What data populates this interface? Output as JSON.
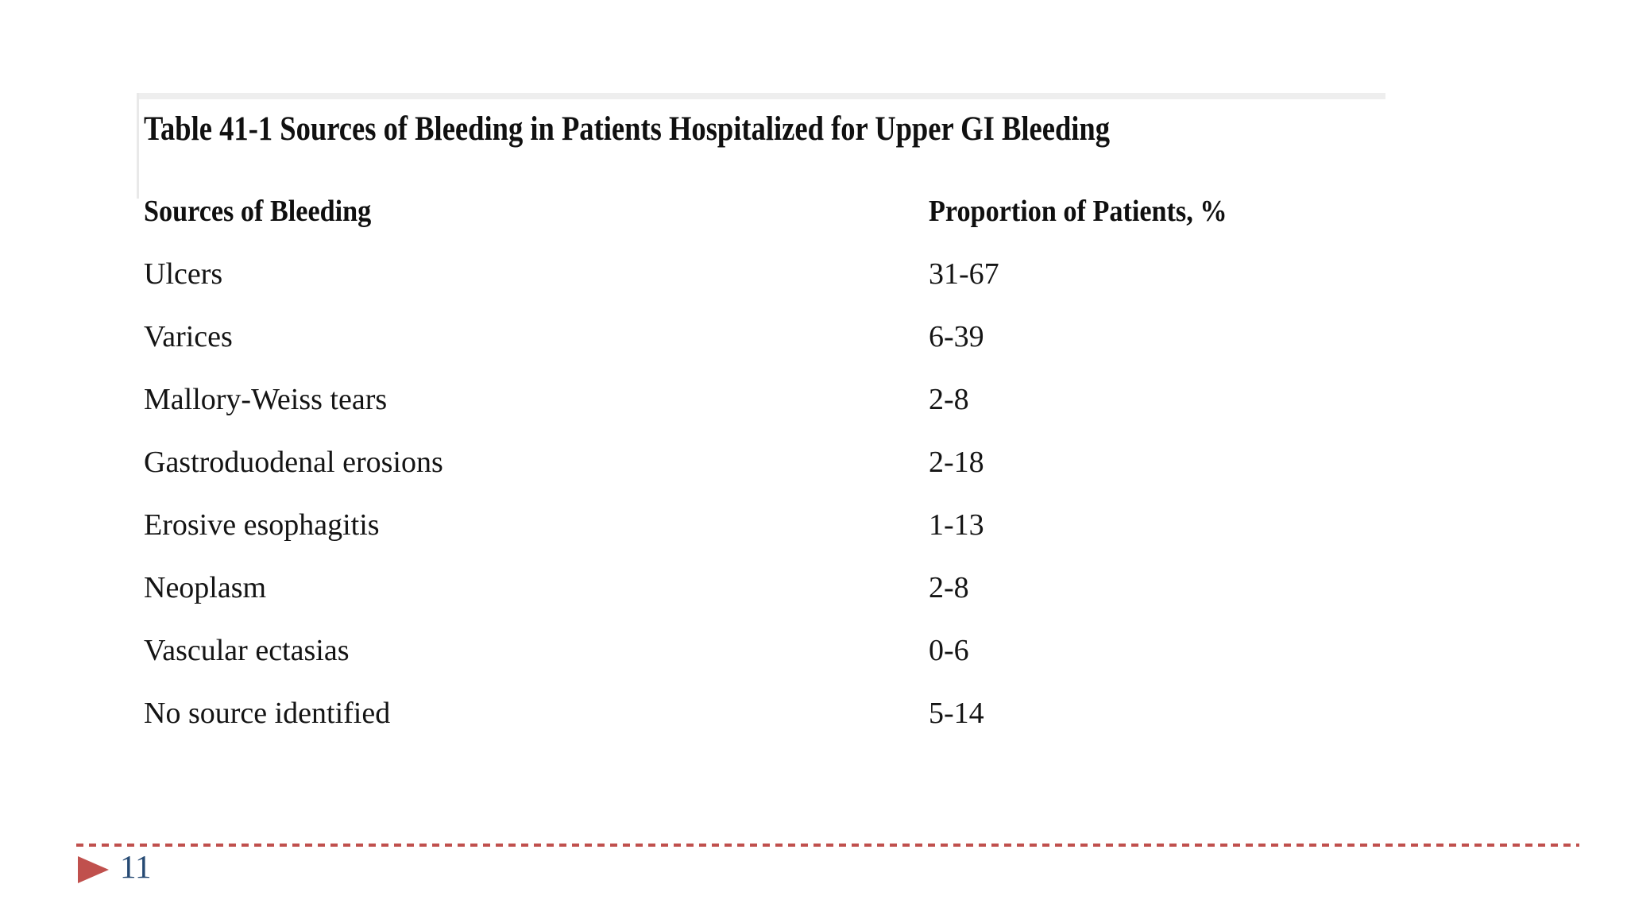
{
  "table_figure": {
    "title": "Table 41-1 Sources of Bleeding in Patients Hospitalized for Upper GI Bleeding",
    "columns": [
      "Sources of Bleeding",
      "Proportion of Patients, %"
    ],
    "rows": [
      {
        "source": "Ulcers",
        "proportion": "31-67"
      },
      {
        "source": "Varices",
        "proportion": "6-39"
      },
      {
        "source": "Mallory-Weiss tears",
        "proportion": "2-8"
      },
      {
        "source": "Gastroduodenal erosions",
        "proportion": "2-18"
      },
      {
        "source": "Erosive esophagitis",
        "proportion": "1-13"
      },
      {
        "source": "Neoplasm",
        "proportion": "2-8"
      },
      {
        "source": "Vascular ectasias",
        "proportion": "0-6"
      },
      {
        "source": "No source identified",
        "proportion": "5-14"
      }
    ]
  },
  "footer": {
    "page_number": "11",
    "icons": {
      "page_arrow": "right-triangle"
    }
  },
  "colors": {
    "accent_red": "#c0504d",
    "page_number_blue": "#264a73",
    "figure_border_gray": "#eeeeee",
    "text_black": "#141414",
    "background": "#ffffff"
  },
  "chart_data": {
    "type": "table",
    "title": "Table 41-1 Sources of Bleeding in Patients Hospitalized for Upper GI Bleeding",
    "columns": [
      "Sources of Bleeding",
      "Proportion of Patients, %"
    ],
    "rows": [
      [
        "Ulcers",
        "31-67"
      ],
      [
        "Varices",
        "6-39"
      ],
      [
        "Mallory-Weiss tears",
        "2-8"
      ],
      [
        "Gastroduodenal erosions",
        "2-18"
      ],
      [
        "Erosive esophagitis",
        "1-13"
      ],
      [
        "Neoplasm",
        "2-8"
      ],
      [
        "Vascular ectasias",
        "0-6"
      ],
      [
        "No source identified",
        "5-14"
      ]
    ]
  }
}
